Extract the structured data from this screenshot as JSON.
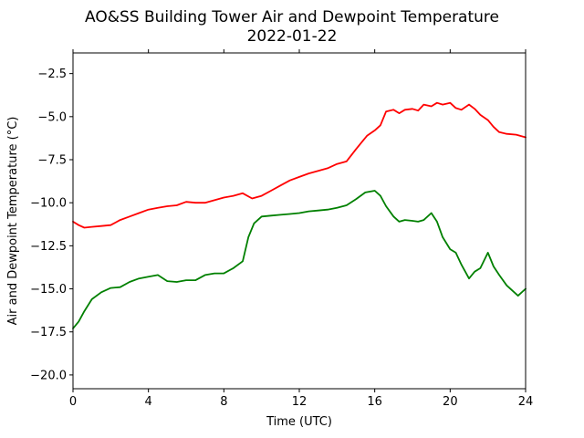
{
  "chart_data": {
    "type": "line",
    "title": "AO&SS Building Tower Air and Dewpoint Temperature",
    "subtitle": "2022-01-22",
    "xlabel": "Time (UTC)",
    "ylabel": "Air and Dewpoint Temperature (°C)",
    "xlim": [
      0,
      24
    ],
    "ylim": [
      -20.8,
      -1.3
    ],
    "xticks": [
      0,
      4,
      8,
      12,
      16,
      20,
      24
    ],
    "xtick_labels": [
      "0",
      "4",
      "8",
      "12",
      "16",
      "20",
      "24"
    ],
    "yticks": [
      -2.5,
      -5.0,
      -7.5,
      -10.0,
      -12.5,
      -15.0,
      -17.5,
      -20.0
    ],
    "ytick_labels": [
      "−2.5",
      "−5.0",
      "−7.5",
      "−10.0",
      "−12.5",
      "−15.0",
      "−17.5",
      "−20.0"
    ],
    "grid": false,
    "legend": "none",
    "series": [
      {
        "color": "#ff0000",
        "x": [
          0,
          0.3,
          0.6,
          1.0,
          1.5,
          2.0,
          2.5,
          3.0,
          3.5,
          4.0,
          4.5,
          5.0,
          5.5,
          6.0,
          6.5,
          7.0,
          7.5,
          8.0,
          8.5,
          9.0,
          9.5,
          10.0,
          10.5,
          11.0,
          11.5,
          12.0,
          12.5,
          13.0,
          13.5,
          14.0,
          14.5,
          15.0,
          15.3,
          15.6,
          16.0,
          16.3,
          16.6,
          17.0,
          17.3,
          17.6,
          18.0,
          18.3,
          18.6,
          19.0,
          19.3,
          19.6,
          20.0,
          20.3,
          20.6,
          21.0,
          21.3,
          21.6,
          22.0,
          22.3,
          22.6,
          23.0,
          23.5,
          24.0
        ],
        "y": [
          -11.1,
          -11.3,
          -11.45,
          -11.4,
          -11.35,
          -11.3,
          -11.0,
          -10.8,
          -10.6,
          -10.4,
          -10.3,
          -10.2,
          -10.15,
          -9.95,
          -10.0,
          -10.0,
          -9.85,
          -9.7,
          -9.6,
          -9.45,
          -9.75,
          -9.6,
          -9.3,
          -9.0,
          -8.7,
          -8.5,
          -8.3,
          -8.15,
          -8.0,
          -7.75,
          -7.6,
          -6.9,
          -6.5,
          -6.1,
          -5.8,
          -5.5,
          -4.7,
          -4.6,
          -4.8,
          -4.6,
          -4.55,
          -4.65,
          -4.3,
          -4.4,
          -4.2,
          -4.3,
          -4.2,
          -4.5,
          -4.6,
          -4.3,
          -4.55,
          -4.9,
          -5.2,
          -5.6,
          -5.9,
          -6.0,
          -6.05,
          -6.2
        ]
      },
      {
        "color": "#008000",
        "x": [
          0,
          0.3,
          0.6,
          1.0,
          1.5,
          2.0,
          2.5,
          3.0,
          3.5,
          4.0,
          4.5,
          5.0,
          5.5,
          6.0,
          6.5,
          7.0,
          7.5,
          8.0,
          8.5,
          9.0,
          9.3,
          9.6,
          10.0,
          10.5,
          11.0,
          11.5,
          12.0,
          12.5,
          13.0,
          13.5,
          14.0,
          14.5,
          15.0,
          15.5,
          16.0,
          16.3,
          16.6,
          17.0,
          17.3,
          17.6,
          18.0,
          18.3,
          18.6,
          19.0,
          19.3,
          19.6,
          20.0,
          20.3,
          20.6,
          21.0,
          21.3,
          21.6,
          22.0,
          22.3,
          22.6,
          23.0,
          23.3,
          23.6,
          24.0
        ],
        "y": [
          -17.3,
          -16.9,
          -16.3,
          -15.6,
          -15.2,
          -14.95,
          -14.9,
          -14.6,
          -14.4,
          -14.3,
          -14.2,
          -14.55,
          -14.6,
          -14.5,
          -14.5,
          -14.2,
          -14.1,
          -14.1,
          -13.8,
          -13.4,
          -12.0,
          -11.2,
          -10.8,
          -10.75,
          -10.7,
          -10.65,
          -10.6,
          -10.5,
          -10.45,
          -10.4,
          -10.3,
          -10.15,
          -9.8,
          -9.4,
          -9.3,
          -9.6,
          -10.2,
          -10.8,
          -11.1,
          -11.0,
          -11.05,
          -11.1,
          -11.0,
          -10.6,
          -11.1,
          -12.0,
          -12.7,
          -12.9,
          -13.6,
          -14.4,
          -14.0,
          -13.8,
          -12.9,
          -13.7,
          -14.2,
          -14.8,
          -15.1,
          -15.4,
          -15.0
        ]
      }
    ]
  }
}
